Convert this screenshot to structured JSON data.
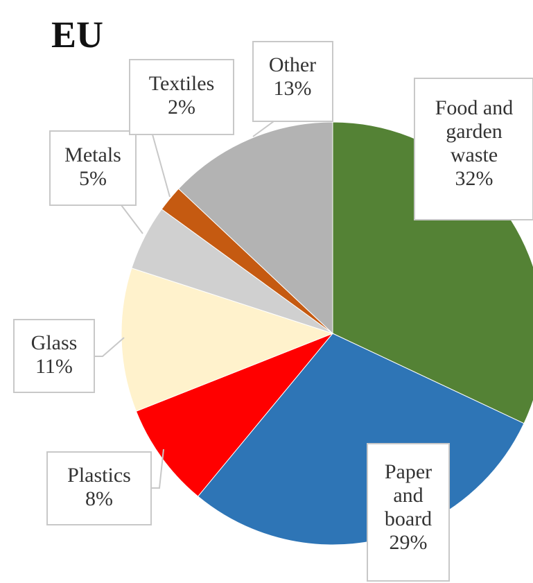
{
  "chart_data": {
    "type": "pie",
    "title": "EU",
    "start_angle_deg": 0,
    "direction": "clockwise",
    "slices": [
      {
        "label_lines": [
          "Food and",
          "garden",
          "waste"
        ],
        "value": 32,
        "value_text": "32%",
        "color": "#548235"
      },
      {
        "label_lines": [
          "Paper",
          "and",
          "board"
        ],
        "value": 29,
        "value_text": "29%",
        "color": "#2e75b6"
      },
      {
        "label_lines": [
          "Plastics"
        ],
        "value": 8,
        "value_text": "8%",
        "color": "#ff0000"
      },
      {
        "label_lines": [
          "Glass"
        ],
        "value": 11,
        "value_text": "11%",
        "color": "#fff2cc"
      },
      {
        "label_lines": [
          "Metals"
        ],
        "value": 5,
        "value_text": "5%",
        "color": "#d0d0d0"
      },
      {
        "label_lines": [
          "Textiles"
        ],
        "value": 2,
        "value_text": "2%",
        "color": "#c55a11"
      },
      {
        "label_lines": [
          "Other"
        ],
        "value": 13,
        "value_text": "13%",
        "color": "#b3b3b3"
      }
    ]
  }
}
